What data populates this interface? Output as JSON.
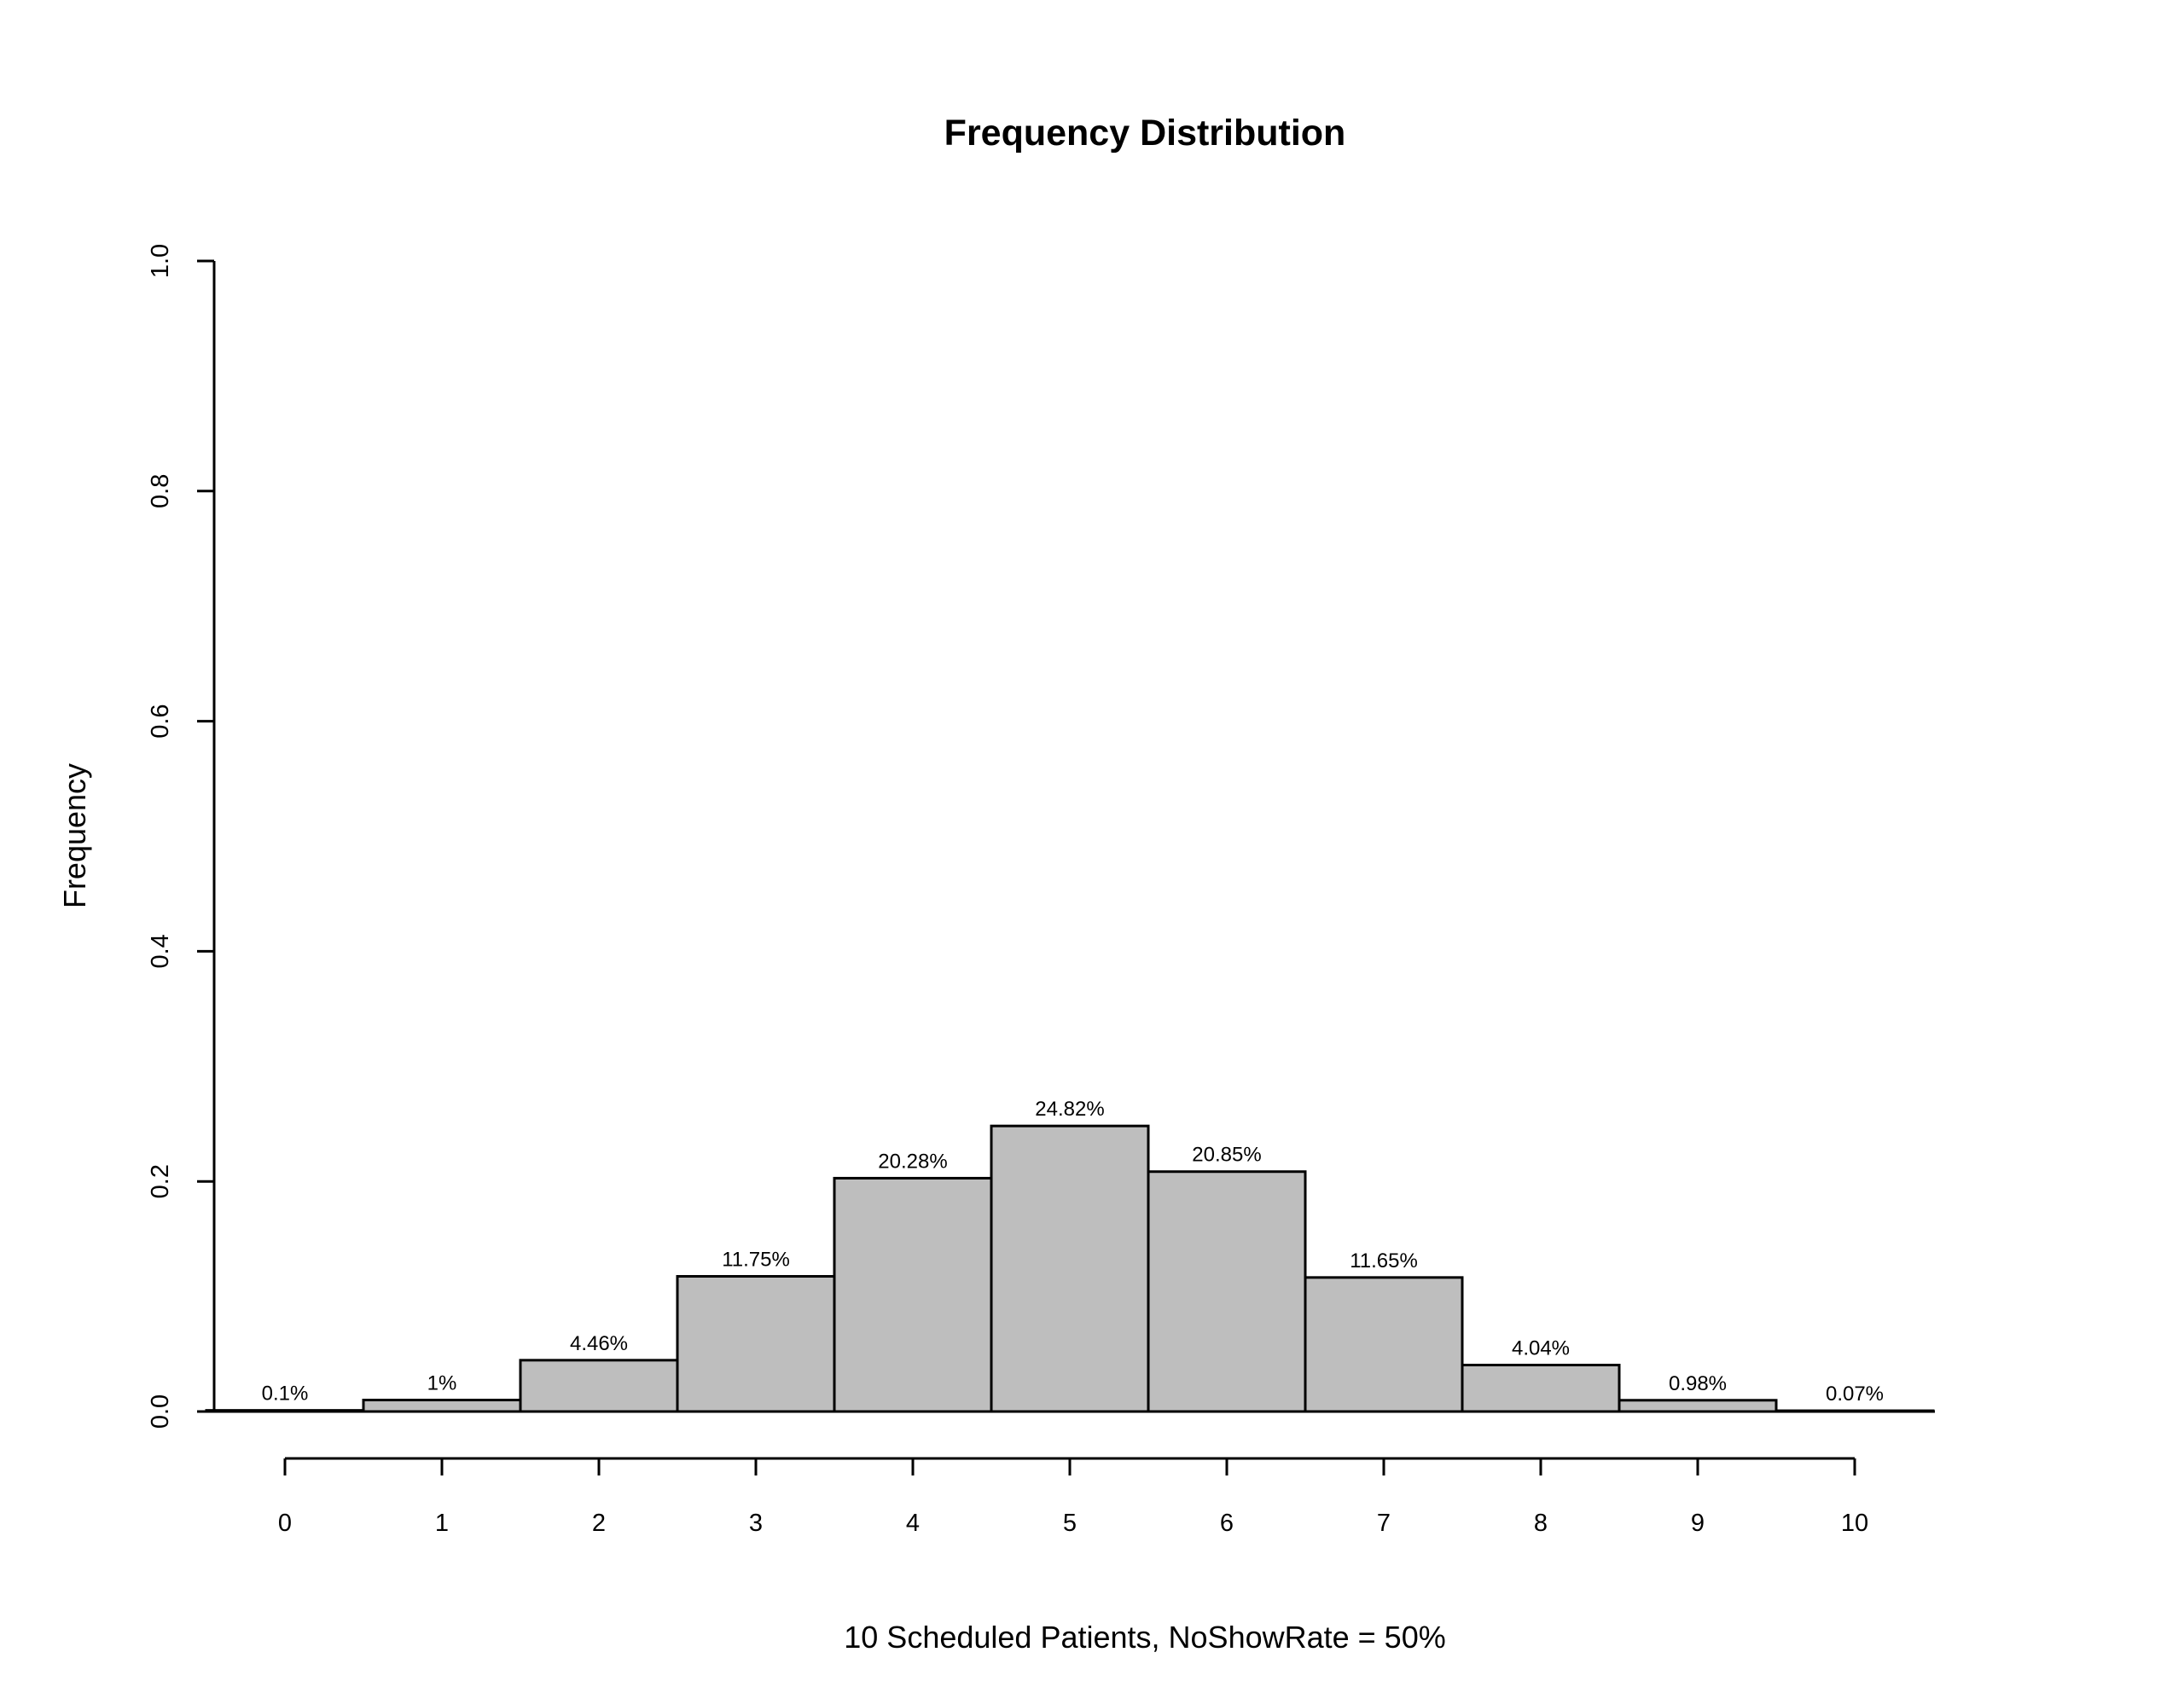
{
  "chart_data": {
    "type": "bar",
    "title": "Frequency Distribution",
    "xlabel": "10 Scheduled Patients,  NoShowRate = 50%",
    "ylabel": "Frequency",
    "categories": [
      "0",
      "1",
      "2",
      "3",
      "4",
      "5",
      "6",
      "7",
      "8",
      "9",
      "10"
    ],
    "values": [
      0.001,
      0.01,
      0.0446,
      0.1175,
      0.2028,
      0.2482,
      0.2085,
      0.1165,
      0.0404,
      0.0098,
      0.0007
    ],
    "data_labels": [
      "0.1%",
      "1%",
      "4.46%",
      "11.75%",
      "20.28%",
      "24.82%",
      "20.85%",
      "11.65%",
      "4.04%",
      "0.98%",
      "0.07%"
    ],
    "ylim": [
      0,
      1
    ],
    "yticks": [
      "0.0",
      "0.2",
      "0.4",
      "0.6",
      "0.8",
      "1.0"
    ],
    "grid": false,
    "legend": "none",
    "colors": {
      "bar_fill": "#bebebe",
      "bar_stroke": "#000000",
      "axis": "#000000",
      "background": "#ffffff"
    }
  }
}
